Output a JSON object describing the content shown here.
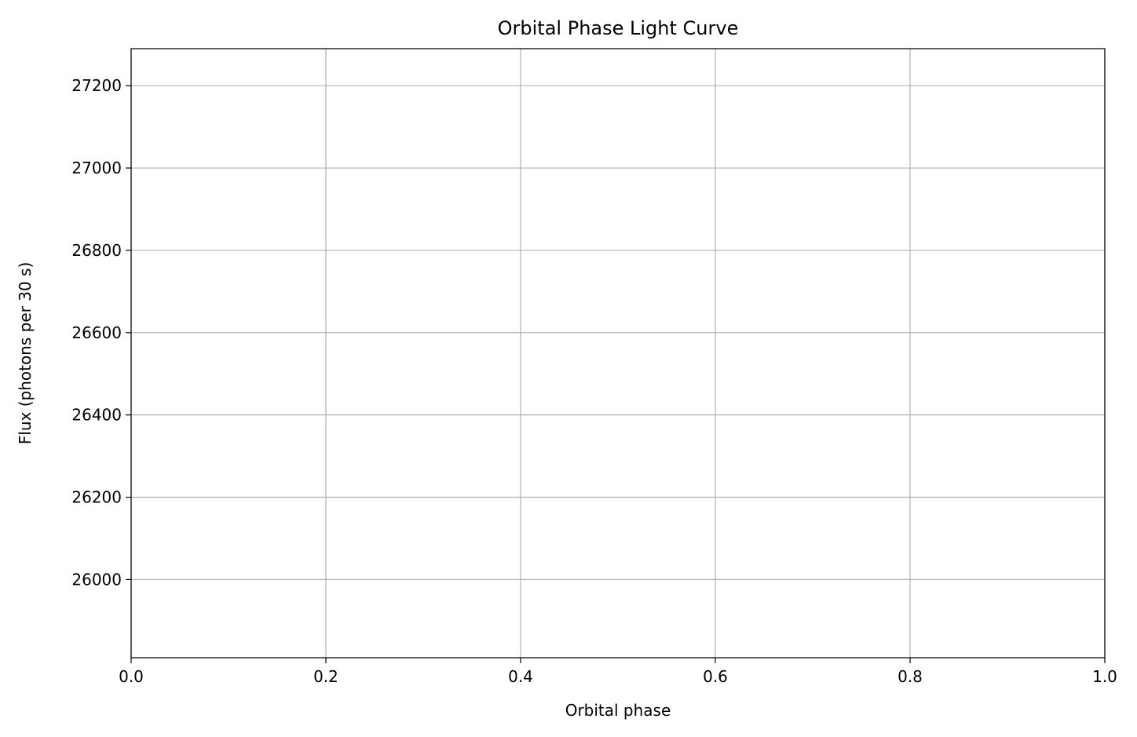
{
  "chart_data": {
    "type": "scatter",
    "title": "Orbital Phase Light Curve",
    "xlabel": "Orbital phase",
    "ylabel": "Flux (photons per 30 s)",
    "xlim": [
      0.0,
      1.0
    ],
    "ylim": [
      25810,
      27290
    ],
    "x_ticks": [
      0.0,
      0.2,
      0.4,
      0.6,
      0.8,
      1.0
    ],
    "x_tick_labels": [
      "0.0",
      "0.2",
      "0.4",
      "0.6",
      "0.8",
      "1.0"
    ],
    "y_ticks": [
      26000,
      26200,
      26400,
      26600,
      26800,
      27000,
      27200
    ],
    "y_tick_labels": [
      "26000",
      "26200",
      "26400",
      "26600",
      "26800",
      "27000",
      "27200"
    ],
    "grid": true,
    "series": [
      {
        "color": "#1f77b4",
        "points": []
      }
    ]
  }
}
